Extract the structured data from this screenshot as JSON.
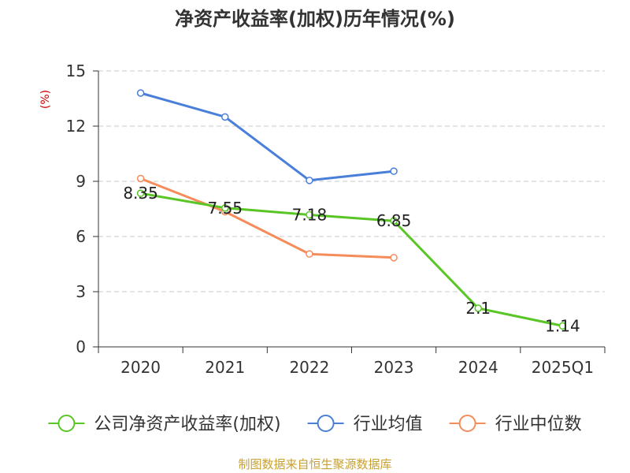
{
  "chart_data": {
    "type": "line",
    "title": "净资产收益率(加权)历年情况(%)",
    "ylabel": "(%)",
    "xlabel": "",
    "categories": [
      "2020",
      "2021",
      "2022",
      "2023",
      "2024",
      "2025Q1"
    ],
    "ylim": [
      0,
      15
    ],
    "yticks": [
      0,
      3,
      6,
      9,
      12,
      15
    ],
    "grid": true,
    "legend_position": "bottom",
    "series": [
      {
        "name": "公司净资产收益率(加权)",
        "color": "#5ac626",
        "values": [
          8.35,
          7.55,
          7.18,
          6.85,
          2.1,
          1.14
        ],
        "labels": [
          "8.35",
          "7.55",
          "7.18",
          "6.85",
          "2.1",
          "1.14"
        ]
      },
      {
        "name": "行业均值",
        "color": "#4a7fd9",
        "values": [
          13.8,
          12.5,
          9.05,
          9.55,
          null,
          null
        ]
      },
      {
        "name": "行业中位数",
        "color": "#f58c5a",
        "values": [
          9.15,
          7.35,
          5.05,
          4.85,
          null,
          null
        ]
      }
    ],
    "source": "制图数据来自恒生聚源数据库"
  }
}
